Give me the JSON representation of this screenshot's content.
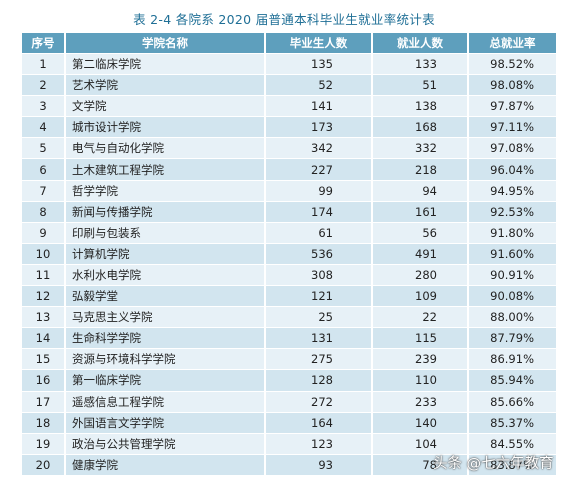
{
  "title": "表 2-4   各院系 2020 届普通本科毕业生就业率统计表",
  "headers": [
    "序号",
    "学院名称",
    "毕业生人数",
    "就业人数",
    "总就业率"
  ],
  "rows": [
    {
      "num": "1",
      "name": "第二临床学院",
      "grads": "135",
      "employed": "133",
      "rate": "98.52%"
    },
    {
      "num": "2",
      "name": "艺术学院",
      "grads": "52",
      "employed": "51",
      "rate": "98.08%"
    },
    {
      "num": "3",
      "name": "文学院",
      "grads": "141",
      "employed": "138",
      "rate": "97.87%"
    },
    {
      "num": "4",
      "name": "城市设计学院",
      "grads": "173",
      "employed": "168",
      "rate": "97.11%"
    },
    {
      "num": "5",
      "name": "电气与自动化学院",
      "grads": "342",
      "employed": "332",
      "rate": "97.08%"
    },
    {
      "num": "6",
      "name": "土木建筑工程学院",
      "grads": "227",
      "employed": "218",
      "rate": "96.04%"
    },
    {
      "num": "7",
      "name": "哲学学院",
      "grads": "99",
      "employed": "94",
      "rate": "94.95%"
    },
    {
      "num": "8",
      "name": "新闻与传播学院",
      "grads": "174",
      "employed": "161",
      "rate": "92.53%"
    },
    {
      "num": "9",
      "name": "印刷与包装系",
      "grads": "61",
      "employed": "56",
      "rate": "91.80%"
    },
    {
      "num": "10",
      "name": "计算机学院",
      "grads": "536",
      "employed": "491",
      "rate": "91.60%"
    },
    {
      "num": "11",
      "name": "水利水电学院",
      "grads": "308",
      "employed": "280",
      "rate": "90.91%"
    },
    {
      "num": "12",
      "name": "弘毅学堂",
      "grads": "121",
      "employed": "109",
      "rate": "90.08%"
    },
    {
      "num": "13",
      "name": "马克思主义学院",
      "grads": "25",
      "employed": "22",
      "rate": "88.00%"
    },
    {
      "num": "14",
      "name": "生命科学学院",
      "grads": "131",
      "employed": "115",
      "rate": "87.79%"
    },
    {
      "num": "15",
      "name": "资源与环境科学学院",
      "grads": "275",
      "employed": "239",
      "rate": "86.91%"
    },
    {
      "num": "16",
      "name": "第一临床学院",
      "grads": "128",
      "employed": "110",
      "rate": "85.94%"
    },
    {
      "num": "17",
      "name": "遥感信息工程学院",
      "grads": "272",
      "employed": "233",
      "rate": "85.66%"
    },
    {
      "num": "18",
      "name": "外国语言文学学院",
      "grads": "164",
      "employed": "140",
      "rate": "85.37%"
    },
    {
      "num": "19",
      "name": "政治与公共管理学院",
      "grads": "123",
      "employed": "104",
      "rate": "84.55%"
    },
    {
      "num": "20",
      "name": "健康学院",
      "grads": "93",
      "employed": "78",
      "rate": "83.87%"
    }
  ],
  "watermark": "头条 @七六年教育"
}
